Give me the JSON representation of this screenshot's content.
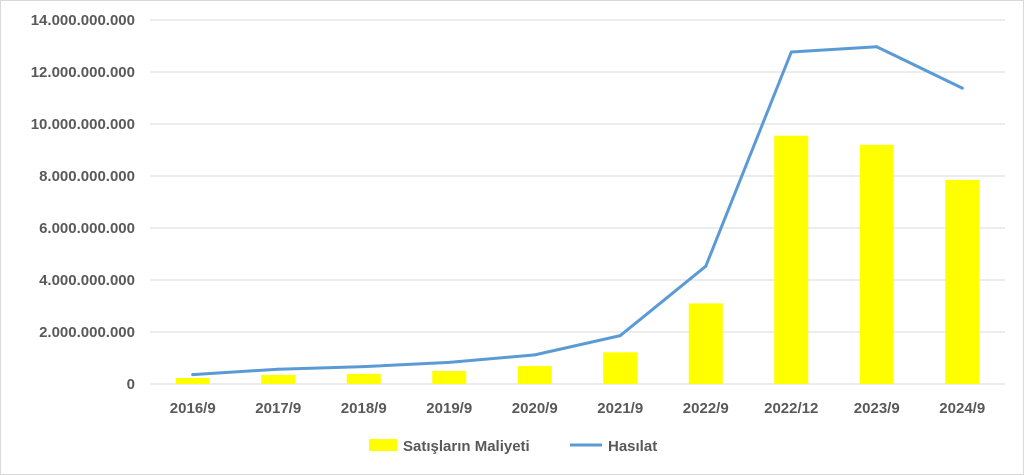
{
  "chart_data": {
    "type": "bar",
    "categories": [
      "2016/9",
      "2017/9",
      "2018/9",
      "2019/9",
      "2020/9",
      "2021/9",
      "2022/9",
      "2022/12",
      "2023/9",
      "2024/9"
    ],
    "ylim": [
      0,
      14000000000
    ],
    "yticks": [
      0,
      2000000000,
      4000000000,
      6000000000,
      8000000000,
      10000000000,
      12000000000,
      14000000000
    ],
    "ytick_labels": [
      "0",
      "2.000.000.000",
      "4.000.000.000",
      "6.000.000.000",
      "8.000.000.000",
      "10.000.000.000",
      "12.000.000.000",
      "14.000.000.000"
    ],
    "grid": true,
    "legend_position": "bottom",
    "series": [
      {
        "name": "Satışların Maliyeti",
        "type": "bar",
        "color": "#ffff00",
        "values": [
          230000000,
          350000000,
          390000000,
          500000000,
          690000000,
          1220000000,
          3100000000,
          9550000000,
          9200000000,
          7850000000
        ]
      },
      {
        "name": "Hasılat",
        "type": "line",
        "color": "#5b9bd5",
        "values": [
          360000000,
          570000000,
          670000000,
          830000000,
          1120000000,
          1860000000,
          4530000000,
          12770000000,
          12970000000,
          11380000000
        ]
      }
    ]
  }
}
